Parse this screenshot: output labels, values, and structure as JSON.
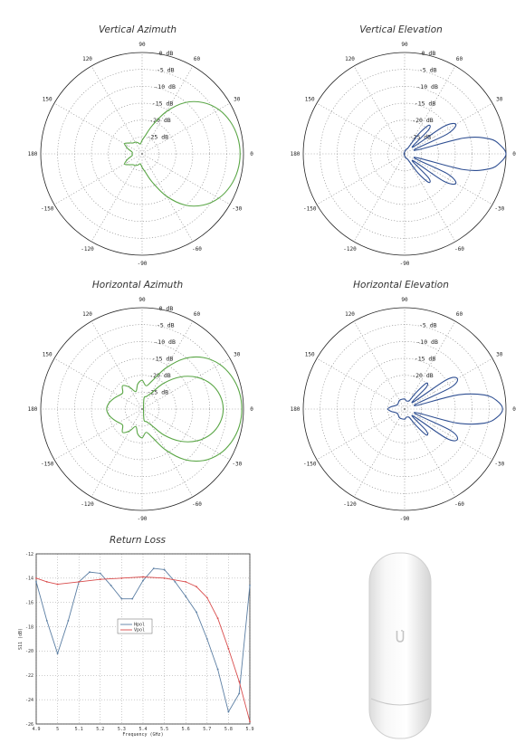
{
  "chart_data": [
    {
      "type": "polar",
      "title": "Vertical Azimuth",
      "angle_labels": [
        "0",
        "30",
        "60",
        "90",
        "120",
        "150",
        "180",
        "-150",
        "-120",
        "-90",
        "-60",
        "-30"
      ],
      "radial_labels": [
        "0 dB",
        "-5 dB",
        "-10 dB",
        "-15 dB",
        "-20 dB",
        "-25 dB"
      ],
      "rlim": [
        -30,
        0
      ],
      "color": "#5aa646",
      "series": [
        {
          "angle_deg": [
            0,
            10,
            20,
            30,
            40,
            50,
            60,
            70,
            80,
            90,
            100,
            110,
            120,
            130,
            140,
            150,
            160,
            170,
            180,
            -170,
            -160,
            -150,
            -140,
            -130,
            -120,
            -110,
            -100,
            -90,
            -80,
            -70,
            -60,
            -50,
            -40,
            -30,
            -20,
            -10
          ],
          "gain_db": [
            -1,
            -1.3,
            -2.2,
            -3.8,
            -6.4,
            -10.2,
            -15.5,
            -21,
            -24.5,
            -26,
            -27,
            -26.5,
            -26,
            -25.8,
            -25,
            -24,
            -25.5,
            -27,
            -27,
            -27,
            -25.5,
            -24,
            -25,
            -25.8,
            -26,
            -26.5,
            -27,
            -26,
            -24.5,
            -21,
            -15.5,
            -10.2,
            -6.4,
            -3.8,
            -2.2,
            -1.3
          ]
        }
      ]
    },
    {
      "type": "polar",
      "title": "Vertical Elevation",
      "angle_labels": [
        "0",
        "30",
        "60",
        "90",
        "120",
        "150",
        "180",
        "-150",
        "-120",
        "-90",
        "-60",
        "-30"
      ],
      "radial_labels": [
        "0 dB",
        "-5 dB",
        "-10 dB",
        "-15 dB",
        "-20 dB",
        "-25 dB"
      ],
      "rlim": [
        -30,
        0
      ],
      "color": "#2f4f92",
      "series": [
        {
          "angle_deg": [
            0,
            5,
            10,
            15,
            20,
            25,
            30,
            35,
            40,
            45,
            50,
            55,
            60,
            70,
            80,
            90,
            120,
            150,
            180,
            -150,
            -120,
            -90,
            -80,
            -70,
            -60,
            -55,
            -50,
            -45,
            -40,
            -35,
            -30,
            -25,
            -20,
            -15,
            -10,
            -5
          ],
          "gain_db": [
            0,
            -1.5,
            -4.5,
            -12,
            -27,
            -16,
            -12.5,
            -16,
            -27,
            -20,
            -19,
            -23,
            -28,
            -28.5,
            -29,
            -29.5,
            -29.7,
            -29.8,
            -29.8,
            -29.8,
            -29.7,
            -29.5,
            -29,
            -28.5,
            -28,
            -23,
            -19,
            -20,
            -27,
            -16,
            -12.5,
            -16,
            -27,
            -12,
            -4.5,
            -1.5
          ]
        }
      ]
    },
    {
      "type": "polar",
      "title": "Horizontal Azimuth",
      "angle_labels": [
        "0",
        "30",
        "60",
        "90",
        "120",
        "150",
        "180",
        "-150",
        "-120",
        "-90",
        "-60",
        "-30"
      ],
      "radial_labels": [
        "0 dB",
        "-5 dB",
        "-10 dB",
        "-15 dB",
        "-20 dB",
        "-25 dB"
      ],
      "rlim": [
        -30,
        0
      ],
      "color": "#5aa646",
      "series": [
        {
          "angle_deg": [
            0,
            10,
            20,
            30,
            40,
            50,
            60,
            70,
            80,
            90,
            100,
            110,
            120,
            130,
            140,
            150,
            160,
            170,
            180,
            -170,
            -160,
            -150,
            -140,
            -130,
            -120,
            -110,
            -100,
            -90,
            -80,
            -70,
            -60,
            -50,
            -40,
            -30,
            -20,
            -10
          ],
          "gain_db": [
            -0.5,
            -0.8,
            -1.8,
            -3.5,
            -6.3,
            -10.5,
            -16,
            -21,
            -23,
            -21.5,
            -22.5,
            -24.5,
            -22.5,
            -21,
            -22.5,
            -22,
            -21,
            -20,
            -19.5,
            -20,
            -21,
            -22,
            -22.5,
            -21,
            -22.5,
            -24.5,
            -22.5,
            -21.5,
            -23,
            -21,
            -16,
            -10.5,
            -6.3,
            -3.5,
            -1.8,
            -0.8
          ]
        },
        {
          "angle_deg": [
            0,
            10,
            20,
            30,
            40,
            50,
            60,
            70,
            80,
            -80,
            -70,
            -60,
            -50,
            -40,
            -30,
            -20,
            -10
          ],
          "gain_db": [
            -6,
            -6.6,
            -8.3,
            -11.2,
            -15.2,
            -20,
            -24.5,
            -26,
            -27,
            -27,
            -26,
            -24.5,
            -20,
            -15.2,
            -11.2,
            -8.3,
            -6.6
          ]
        }
      ]
    },
    {
      "type": "polar",
      "title": "Horizontal Elevation",
      "angle_labels": [
        "0",
        "30",
        "60",
        "90",
        "120",
        "150",
        "180",
        "-150",
        "-120",
        "-90",
        "-60",
        "-30"
      ],
      "radial_labels": [
        "-5 dB",
        "-10 dB",
        "-15 dB",
        "-20 dB"
      ],
      "rlim": [
        -30,
        0
      ],
      "color": "#2f4f92",
      "series": [
        {
          "angle_deg": [
            0,
            5,
            10,
            15,
            20,
            25,
            30,
            35,
            40,
            45,
            50,
            55,
            60,
            70,
            80,
            90,
            120,
            150,
            170,
            180,
            -170,
            -150,
            -120,
            -90,
            -80,
            -70,
            -60,
            -55,
            -50,
            -45,
            -40,
            -35,
            -30,
            -25,
            -20,
            -15,
            -10,
            -5
          ],
          "gain_db": [
            -1,
            -2.5,
            -6,
            -14,
            -27,
            -15,
            -12,
            -15,
            -27,
            -21,
            -20,
            -24,
            -27,
            -27.5,
            -27.5,
            -27,
            -27,
            -27.5,
            -26,
            -25,
            -26,
            -27.5,
            -27,
            -27,
            -27.5,
            -27.5,
            -27,
            -24,
            -20,
            -21,
            -27,
            -15,
            -12,
            -15,
            -27,
            -14,
            -6,
            -2.5
          ]
        }
      ]
    },
    {
      "type": "line",
      "title": "Return Loss",
      "xlabel": "Frequency (GHz)",
      "ylabel": "S11 (dB)",
      "x_tick_labels": [
        "4.9",
        "5",
        "5.1",
        "5.2",
        "5.3",
        "5.4",
        "5.5",
        "5.6",
        "5.7",
        "5.8",
        "5.9"
      ],
      "y_tick_labels": [
        "-12",
        "-14",
        "-16",
        "-18",
        "-20",
        "-22",
        "-24",
        "-26"
      ],
      "xlim": [
        4.9,
        5.9
      ],
      "ylim": [
        -26,
        -12
      ],
      "grid": true,
      "legend": {
        "position": "center-left"
      },
      "series": [
        {
          "name": "Hpol",
          "color": "#5b7ea3",
          "x": [
            4.9,
            4.95,
            5.0,
            5.05,
            5.1,
            5.15,
            5.2,
            5.25,
            5.3,
            5.35,
            5.4,
            5.45,
            5.5,
            5.55,
            5.6,
            5.65,
            5.7,
            5.75,
            5.8,
            5.85,
            5.9
          ],
          "y": [
            -14.3,
            -17.5,
            -20.2,
            -17.5,
            -14.3,
            -13.5,
            -13.6,
            -14.6,
            -15.7,
            -15.7,
            -14.2,
            -13.2,
            -13.3,
            -14.3,
            -15.5,
            -16.8,
            -19.0,
            -21.5,
            -25.0,
            -23.5,
            -14.6
          ]
        },
        {
          "name": "Vpol",
          "color": "#d94c4c",
          "x": [
            4.9,
            4.95,
            5.0,
            5.1,
            5.2,
            5.3,
            5.4,
            5.5,
            5.6,
            5.65,
            5.7,
            5.75,
            5.8,
            5.85,
            5.9
          ],
          "y": [
            -14.0,
            -14.3,
            -14.5,
            -14.3,
            -14.1,
            -14.0,
            -13.9,
            -14.0,
            -14.3,
            -14.7,
            -15.6,
            -17.3,
            -19.8,
            -22.5,
            -25.8
          ]
        }
      ]
    }
  ],
  "product": {
    "logo_icon": "ubiquiti-u-logo-icon"
  }
}
